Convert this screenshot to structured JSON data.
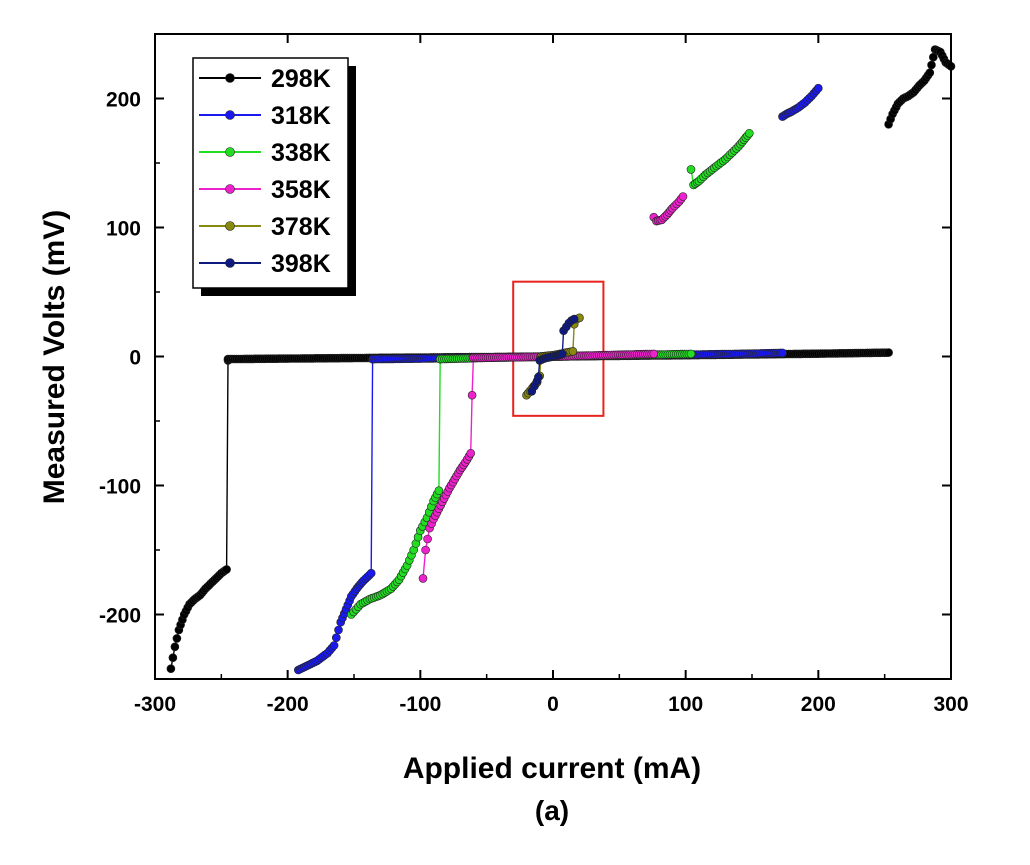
{
  "chart_data": {
    "type": "line",
    "xlabel": "Applied current (mA)",
    "ylabel": "Measured Volts (mV)",
    "panel_label": "(a)",
    "xlim": [
      -300,
      300
    ],
    "ylim": [
      -250,
      250
    ],
    "x_ticks": [
      -300,
      -200,
      -100,
      0,
      100,
      200,
      300
    ],
    "y_ticks": [
      -200,
      -100,
      0,
      100,
      200
    ],
    "legend_position": "top-left",
    "highlight_box": {
      "x0": -30,
      "x1": 38,
      "y0": -46,
      "y1": 58,
      "color": "#e8231f"
    },
    "series": [
      {
        "name": "298K",
        "color": "#000000",
        "segments": [
          [
            [
              -288,
              -242
            ],
            [
              -285,
              -225
            ],
            [
              -282,
              -212
            ],
            [
              -278,
              -200
            ],
            [
              -274,
              -192
            ],
            [
              -270,
              -188
            ],
            [
              -266,
              -185
            ],
            [
              -262,
              -180
            ],
            [
              -258,
              -176
            ],
            [
              -254,
              -172
            ],
            [
              -250,
              -168
            ],
            [
              -246,
              -165
            ],
            [
              -245,
              -3
            ]
          ],
          [
            [
              -245,
              -2
            ],
            [
              -200,
              -1.6
            ],
            [
              -150,
              -1.2
            ],
            [
              -100,
              -0.8
            ],
            [
              -50,
              -0.4
            ],
            [
              0,
              0
            ],
            [
              50,
              0.5
            ],
            [
              100,
              1
            ],
            [
              150,
              1.6
            ],
            [
              200,
              2.2
            ],
            [
              253,
              3
            ]
          ],
          [
            [
              253,
              180
            ],
            [
              256,
              188
            ],
            [
              260,
              196
            ],
            [
              264,
              200
            ],
            [
              268,
              202
            ],
            [
              272,
              205
            ],
            [
              276,
              210
            ],
            [
              280,
              214
            ],
            [
              284,
              220
            ],
            [
              288,
              238
            ],
            [
              292,
              236
            ],
            [
              296,
              228
            ],
            [
              300,
              225
            ]
          ]
        ]
      },
      {
        "name": "318K",
        "color": "#1a1aee",
        "segments": [
          [
            [
              -192,
              -243
            ],
            [
              -178,
              -236
            ],
            [
              -170,
              -230
            ],
            [
              -165,
              -224
            ],
            [
              -160,
              -206
            ],
            [
              -156,
              -196
            ],
            [
              -152,
              -186
            ],
            [
              -148,
              -180
            ],
            [
              -144,
              -175
            ],
            [
              -140,
              -171
            ],
            [
              -137,
              -168
            ],
            [
              -136,
              -2
            ]
          ],
          [
            [
              -136,
              -2
            ],
            [
              -100,
              -1.6
            ],
            [
              -50,
              -0.8
            ],
            [
              0,
              0
            ],
            [
              50,
              0.8
            ],
            [
              100,
              1.4
            ],
            [
              150,
              2.2
            ],
            [
              173,
              2.8
            ]
          ],
          [
            [
              173,
              186
            ],
            [
              176,
              188
            ],
            [
              180,
              190
            ],
            [
              185,
              193
            ],
            [
              190,
              197
            ],
            [
              195,
              202
            ],
            [
              200,
              208
            ]
          ]
        ]
      },
      {
        "name": "338K",
        "color": "#22dd22",
        "segments": [
          [
            [
              -152,
              -200
            ],
            [
              -145,
              -192
            ],
            [
              -138,
              -188
            ],
            [
              -130,
              -185
            ],
            [
              -122,
              -180
            ],
            [
              -116,
              -173
            ],
            [
              -110,
              -162
            ],
            [
              -105,
              -150
            ],
            [
              -100,
              -135
            ],
            [
              -95,
              -125
            ],
            [
              -90,
              -112
            ],
            [
              -86,
              -104
            ],
            [
              -85,
              -2
            ]
          ],
          [
            [
              -85,
              -2
            ],
            [
              -50,
              -1
            ],
            [
              0,
              0
            ],
            [
              50,
              0.8
            ],
            [
              104,
              2
            ]
          ],
          [
            [
              104,
              145
            ],
            [
              106,
              133
            ],
            [
              110,
              136
            ],
            [
              115,
              141
            ],
            [
              120,
              145
            ],
            [
              125,
              149
            ],
            [
              130,
              153
            ],
            [
              135,
              158
            ],
            [
              140,
              163
            ],
            [
              144,
              168
            ],
            [
              148,
              173
            ]
          ]
        ]
      },
      {
        "name": "358K",
        "color": "#ee22cc",
        "segments": [
          [
            [
              -98,
              -172
            ],
            [
              -96,
              -150
            ],
            [
              -93,
              -133
            ],
            [
              -90,
              -126
            ],
            [
              -86,
              -118
            ],
            [
              -82,
              -110
            ],
            [
              -78,
              -102
            ],
            [
              -74,
              -95
            ],
            [
              -70,
              -88
            ],
            [
              -66,
              -82
            ],
            [
              -62,
              -75
            ],
            [
              -61,
              -30
            ],
            [
              -60,
              -1
            ]
          ],
          [
            [
              -60,
              -1
            ],
            [
              -30,
              -0.6
            ],
            [
              0,
              0
            ],
            [
              30,
              0.8
            ],
            [
              76,
              2
            ]
          ],
          [
            [
              76,
              108
            ],
            [
              78,
              105
            ],
            [
              82,
              106
            ],
            [
              86,
              110
            ],
            [
              90,
              115
            ],
            [
              95,
              120
            ],
            [
              98,
              124
            ]
          ]
        ]
      },
      {
        "name": "378K",
        "color": "#888a10",
        "segments": [
          [
            [
              -20,
              -30
            ],
            [
              -16,
              -25
            ],
            [
              -12,
              -20
            ],
            [
              -10,
              -15
            ],
            [
              -9,
              0
            ],
            [
              -5,
              0.5
            ],
            [
              0,
              1
            ],
            [
              5,
              2
            ],
            [
              10,
              3
            ],
            [
              15,
              4
            ],
            [
              16,
              25
            ],
            [
              18,
              29
            ],
            [
              20,
              30
            ]
          ]
        ]
      },
      {
        "name": "398K",
        "color": "#0e1a80",
        "segments": [
          [
            [
              -16,
              -27
            ],
            [
              -14,
              -23
            ],
            [
              -12,
              -19
            ],
            [
              -11,
              -16
            ],
            [
              -10,
              -3
            ],
            [
              -5,
              -1
            ],
            [
              0,
              0
            ],
            [
              4,
              1
            ],
            [
              7,
              2
            ],
            [
              8,
              20
            ],
            [
              10,
              23
            ],
            [
              12,
              26
            ],
            [
              14,
              28
            ],
            [
              16,
              29
            ]
          ]
        ]
      }
    ]
  }
}
